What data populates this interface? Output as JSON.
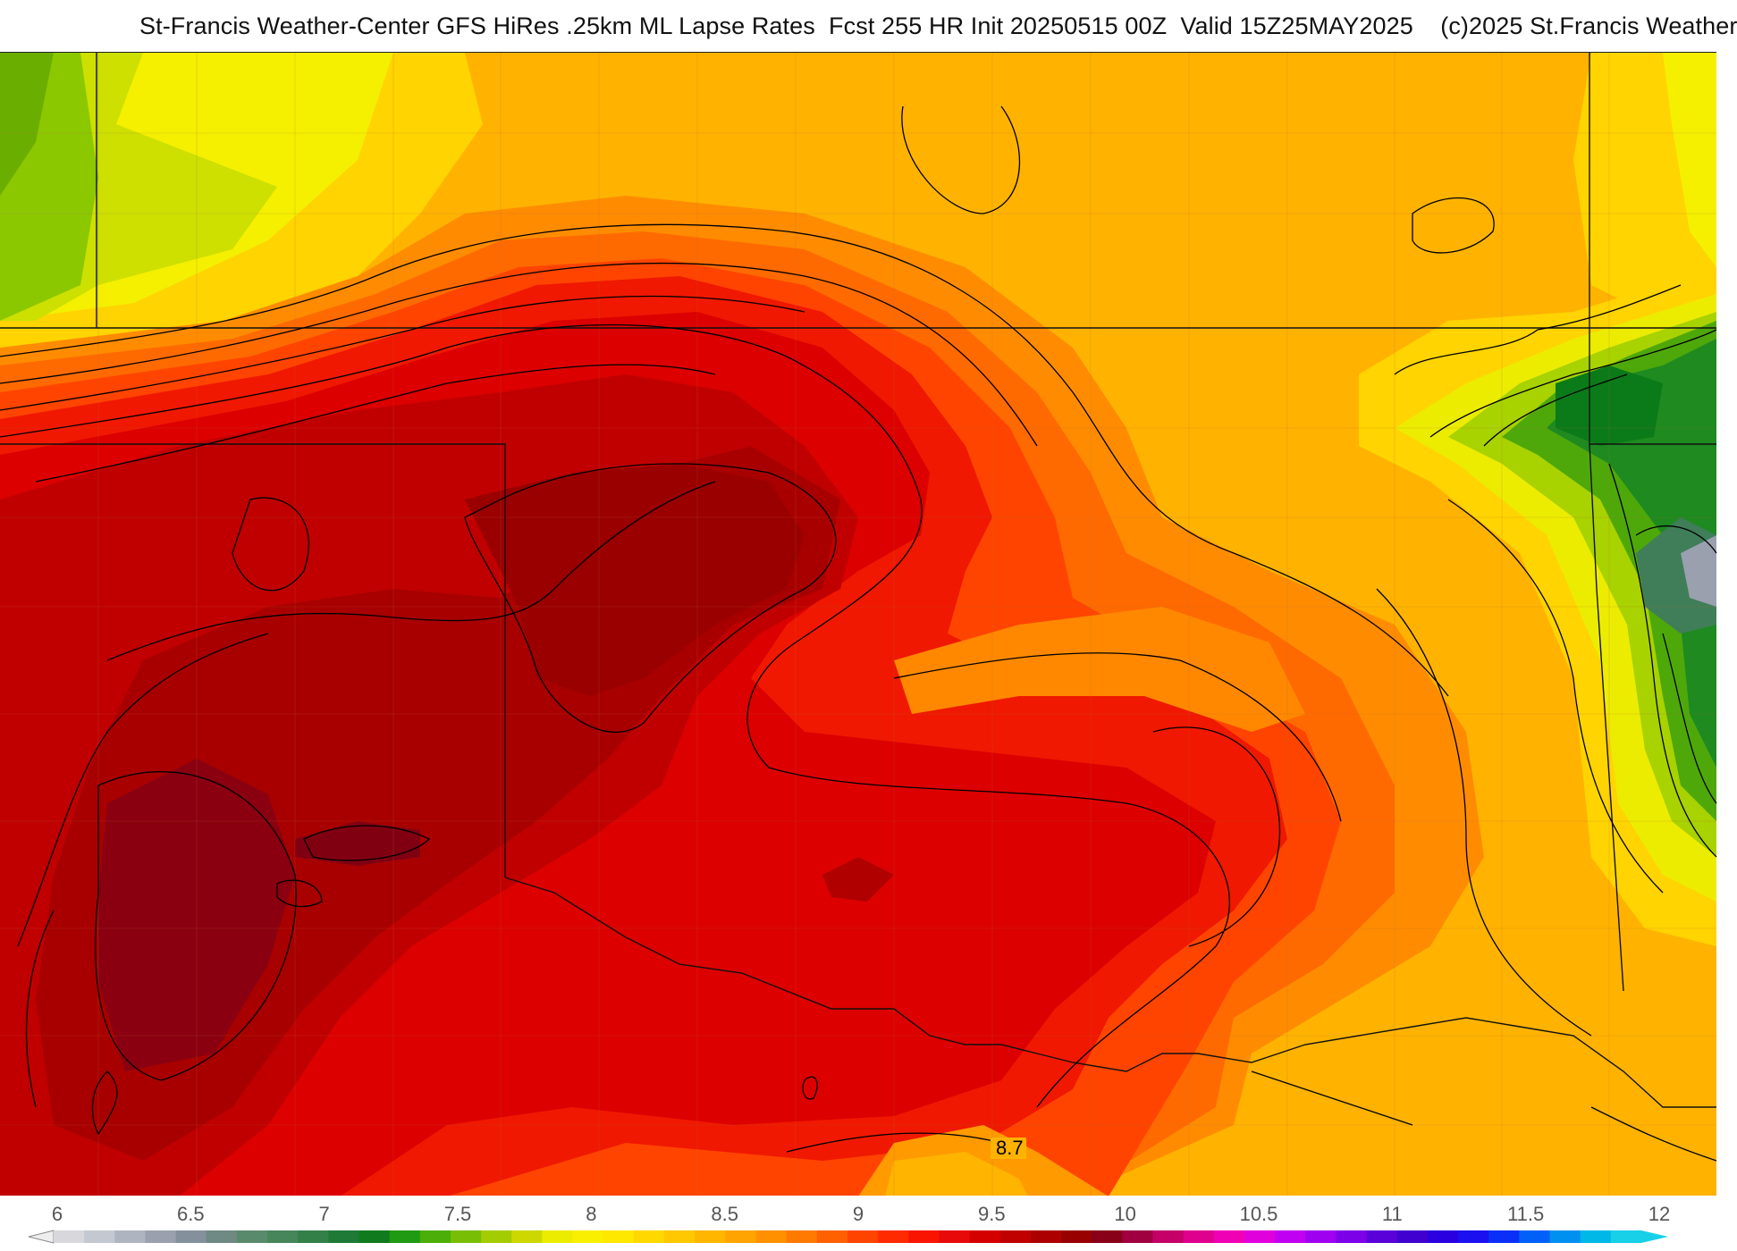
{
  "header": {
    "title": "St-Francis Weather-Center GFS HiRes .25km ML Lapse Rates  Fcst 255 HR Init 20250515 00Z  Valid 15Z25MAY2025    (c)2025 St.Francis Weather"
  },
  "map": {
    "contour_label": "8.7"
  },
  "colorbar": {
    "tick_labels": [
      "6",
      "6.5",
      "7",
      "7.5",
      "8",
      "8.5",
      "9",
      "9.5",
      "10",
      "10.5",
      "11",
      "11.5",
      "12"
    ],
    "colors": [
      "#d8d8dc",
      "#c4c8d0",
      "#aeb4c0",
      "#9aa0ae",
      "#84909c",
      "#6e8a82",
      "#5a8a6c",
      "#47855a",
      "#338049",
      "#1e7a36",
      "#0f7a1e",
      "#209a12",
      "#4cae08",
      "#78be04",
      "#a4cc02",
      "#ccd800",
      "#ecec00",
      "#f8f000",
      "#ffe800",
      "#ffd800",
      "#ffc800",
      "#ffb600",
      "#ffa400",
      "#ff9000",
      "#ff7a00",
      "#ff6000",
      "#ff4400",
      "#ff2a00",
      "#f81400",
      "#e80a0a",
      "#d40000",
      "#c00000",
      "#ac0000",
      "#980000",
      "#880018",
      "#a00040",
      "#c40068",
      "#e0008e",
      "#f000b4",
      "#e000dc",
      "#c000f0",
      "#a000f0",
      "#7c00e8",
      "#5a00d8",
      "#4000d0",
      "#2a00e0",
      "#1a10f0",
      "#0a30f8",
      "#0060f8",
      "#0090f0",
      "#00b8e8",
      "#18d0e8"
    ]
  }
}
